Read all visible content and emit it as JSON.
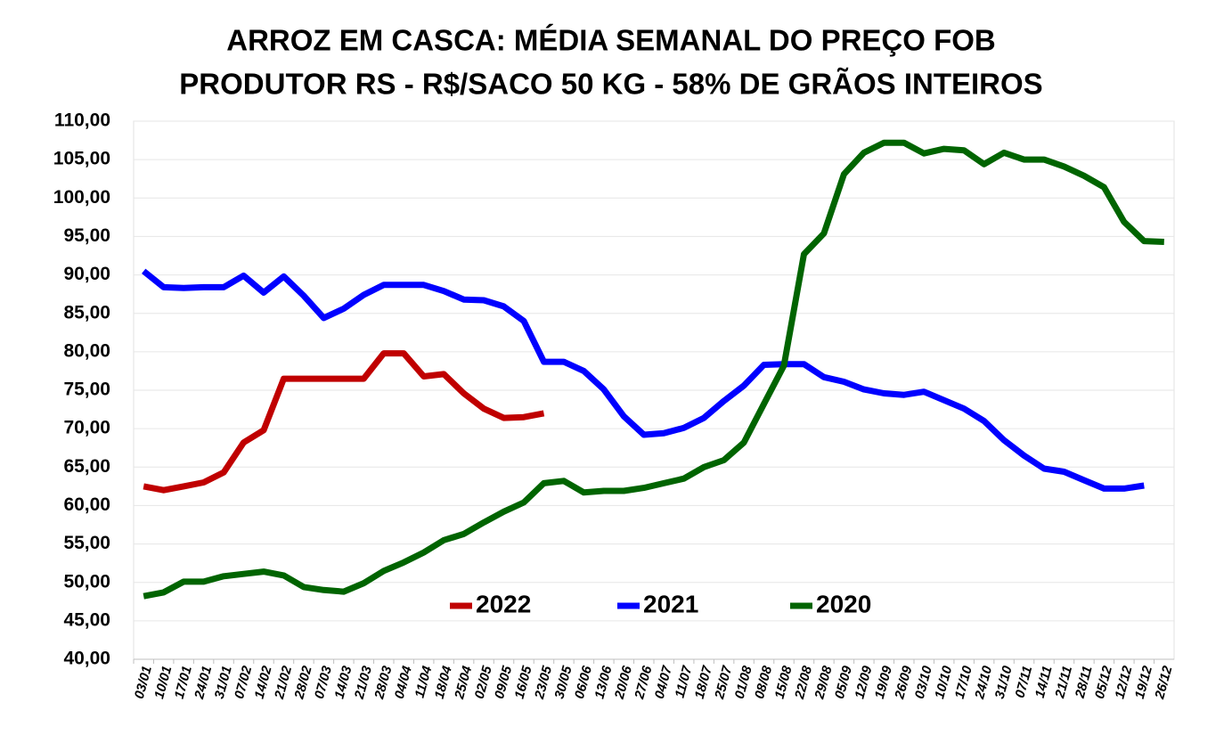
{
  "chart_data": {
    "type": "line",
    "title": [
      "ARROZ EM CASCA: MÉDIA SEMANAL DO PREÇO FOB",
      "PRODUTOR RS - R$/SACO 50 KG - 58% DE GRÃOS INTEIROS"
    ],
    "categories": [
      "03/01",
      "10/01",
      "17/01",
      "24/01",
      "31/01",
      "07/02",
      "14/02",
      "21/02",
      "28/02",
      "07/03",
      "14/03",
      "21/03",
      "28/03",
      "04/04",
      "11/04",
      "18/04",
      "25/04",
      "02/05",
      "09/05",
      "16/05",
      "23/05",
      "30/05",
      "06/06",
      "13/06",
      "20/06",
      "27/06",
      "04/07",
      "11/07",
      "18/07",
      "25/07",
      "01/08",
      "08/08",
      "15/08",
      "22/08",
      "29/08",
      "05/09",
      "12/09",
      "19/09",
      "26/09",
      "03/10",
      "10/10",
      "17/10",
      "24/10",
      "31/10",
      "07/11",
      "14/11",
      "21/11",
      "28/11",
      "05/12",
      "12/12",
      "19/12",
      "26/12"
    ],
    "series": [
      {
        "name": "2022",
        "color": "#c00000",
        "values": [
          62.5,
          62.0,
          62.5,
          63.0,
          64.3,
          68.2,
          69.8,
          76.5,
          76.5,
          76.5,
          76.5,
          76.5,
          79.8,
          79.8,
          76.8,
          77.1,
          74.6,
          72.6,
          71.4,
          71.5,
          72.0,
          null,
          null,
          null,
          null,
          null,
          null,
          null,
          null,
          null,
          null,
          null,
          null,
          null,
          null,
          null,
          null,
          null,
          null,
          null,
          null,
          null,
          null,
          null,
          null,
          null,
          null,
          null,
          null,
          null,
          null,
          null
        ]
      },
      {
        "name": "2021",
        "color": "#0000ff",
        "values": [
          90.5,
          88.4,
          88.3,
          88.4,
          88.4,
          89.9,
          87.7,
          89.8,
          87.3,
          84.4,
          85.6,
          87.4,
          88.7,
          88.7,
          88.7,
          87.9,
          86.8,
          86.7,
          85.9,
          84.0,
          78.7,
          78.7,
          77.5,
          75.1,
          71.6,
          69.2,
          69.4,
          70.1,
          71.4,
          73.6,
          75.6,
          78.3,
          78.4,
          78.4,
          76.7,
          76.1,
          75.1,
          74.6,
          74.4,
          74.8,
          73.7,
          72.6,
          71.0,
          68.5,
          66.5,
          64.8,
          64.4,
          63.3,
          62.2,
          62.2,
          62.6,
          null
        ]
      },
      {
        "name": "2020",
        "color": "#006400",
        "values": [
          48.2,
          48.7,
          50.1,
          50.1,
          50.8,
          51.1,
          51.4,
          50.9,
          49.4,
          49.0,
          48.8,
          49.9,
          51.5,
          52.6,
          53.9,
          55.5,
          56.3,
          57.8,
          59.2,
          60.4,
          62.9,
          63.2,
          61.7,
          61.9,
          61.9,
          62.3,
          62.9,
          63.5,
          65.0,
          65.9,
          68.2,
          73.2,
          78.2,
          92.7,
          95.4,
          103.1,
          105.9,
          107.2,
          107.2,
          105.8,
          106.4,
          106.2,
          104.4,
          105.9,
          105.0,
          105.0,
          104.1,
          102.9,
          101.4,
          96.9,
          94.4,
          94.3
        ]
      }
    ],
    "ylim": [
      40,
      110
    ],
    "yticks": [
      {
        "value": 40,
        "label": "40,00"
      },
      {
        "value": 45,
        "label": "45,00"
      },
      {
        "value": 50,
        "label": "50,00"
      },
      {
        "value": 55,
        "label": "55,00"
      },
      {
        "value": 60,
        "label": "60,00"
      },
      {
        "value": 65,
        "label": "65,00"
      },
      {
        "value": 70,
        "label": "70,00"
      },
      {
        "value": 75,
        "label": "75,00"
      },
      {
        "value": 80,
        "label": "80,00"
      },
      {
        "value": 85,
        "label": "85,00"
      },
      {
        "value": 90,
        "label": "90,00"
      },
      {
        "value": 95,
        "label": "95,00"
      },
      {
        "value": 100,
        "label": "100,00"
      },
      {
        "value": 105,
        "label": "105,00"
      },
      {
        "value": 110,
        "label": "110,00"
      }
    ],
    "grid": true,
    "legend": "bottom"
  }
}
